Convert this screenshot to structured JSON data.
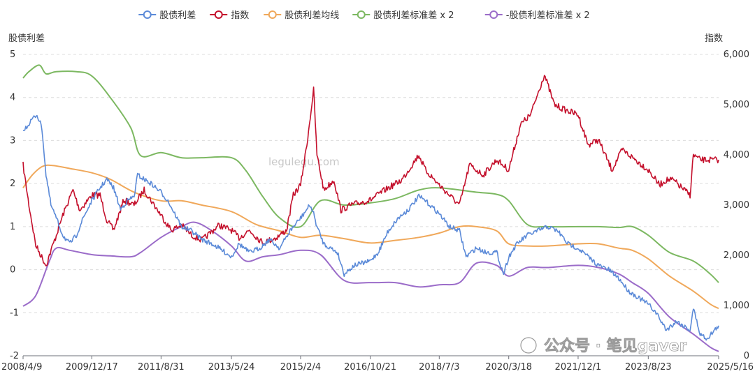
{
  "chart_data": {
    "type": "line",
    "title": "",
    "y_left_label": "股债利差",
    "y_right_label": "指数",
    "y_left_ticks": [
      "5",
      "4",
      "3",
      "2",
      "1",
      "0",
      "-1",
      "-2"
    ],
    "y_right_ticks": [
      "6,000",
      "5,000",
      "4,000",
      "3,000",
      "2,000",
      "1,000",
      "0"
    ],
    "ylim_left": [
      -2,
      5
    ],
    "ylim_right": [
      0,
      6000
    ],
    "x_ticks": [
      "2008/4/9",
      "2009/12/17",
      "2011/8/31",
      "2013/5/24",
      "2015/2/4",
      "2016/10/21",
      "2018/7/3",
      "2020/3/18",
      "2021/12/1",
      "2023/8/23",
      "2025/5/16"
    ],
    "x_range": [
      "2008/4/9",
      "2025/5/16"
    ],
    "grid": true,
    "legend_position": "top-center",
    "watermark": "legulegu.com",
    "source_watermark": "公众号 · 笔见gaver",
    "series": [
      {
        "name": "股债利差",
        "axis": "left",
        "color": "#5b8ad8",
        "points": [
          [
            "2008/4/9",
            3.2
          ],
          [
            "2008/5/20",
            3.35
          ],
          [
            "2008/7/1",
            3.5
          ],
          [
            "2008/8/12",
            3.6
          ],
          [
            "2008/9/25",
            3.3
          ],
          [
            "2008/11/1",
            2.2
          ],
          [
            "2008/12/15",
            1.5
          ],
          [
            "2009/2/1",
            1.2
          ],
          [
            "2009/4/1",
            0.8
          ],
          [
            "2009/6/1",
            0.6
          ],
          [
            "2009/8/1",
            0.8
          ],
          [
            "2009/10/1",
            1.2
          ],
          [
            "2009/12/17",
            1.6
          ],
          [
            "2010/3/1",
            1.9
          ],
          [
            "2010/5/1",
            2.1
          ],
          [
            "2010/7/1",
            1.9
          ],
          [
            "2010/9/1",
            1.4
          ],
          [
            "2010/11/1",
            1.6
          ],
          [
            "2011/1/1",
            1.7
          ],
          [
            "2011/2/1",
            2.2
          ],
          [
            "2011/4/1",
            2.1
          ],
          [
            "2011/6/1",
            2.0
          ],
          [
            "2011/8/31",
            1.8
          ],
          [
            "2011/11/1",
            1.6
          ],
          [
            "2012/1/1",
            1.3
          ],
          [
            "2012/3/1",
            1.0
          ],
          [
            "2012/6/1",
            0.9
          ],
          [
            "2012/9/1",
            0.7
          ],
          [
            "2012/12/1",
            0.6
          ],
          [
            "2013/2/1",
            0.5
          ],
          [
            "2013/5/24",
            0.3
          ],
          [
            "2013/8/1",
            0.6
          ],
          [
            "2013/11/1",
            0.4
          ],
          [
            "2014/2/1",
            0.5
          ],
          [
            "2014/5/1",
            0.7
          ],
          [
            "2014/8/1",
            0.5
          ],
          [
            "2014/11/1",
            0.9
          ],
          [
            "2015/2/4",
            1.2
          ],
          [
            "2015/4/1",
            1.4
          ],
          [
            "2015/5/1",
            1.5
          ],
          [
            "2015/6/1",
            1.3
          ],
          [
            "2015/7/1",
            1.0
          ],
          [
            "2015/9/1",
            0.6
          ],
          [
            "2015/11/1",
            0.5
          ],
          [
            "2016/1/1",
            0.4
          ],
          [
            "2016/3/1",
            -0.1
          ],
          [
            "2016/6/1",
            0.1
          ],
          [
            "2016/10/21",
            0.2
          ],
          [
            "2017/1/1",
            0.4
          ],
          [
            "2017/4/1",
            0.9
          ],
          [
            "2017/7/1",
            1.2
          ],
          [
            "2017/10/1",
            1.4
          ],
          [
            "2018/1/1",
            1.7
          ],
          [
            "2018/3/1",
            1.6
          ],
          [
            "2018/7/3",
            1.3
          ],
          [
            "2018/10/1",
            1.0
          ],
          [
            "2019/1/1",
            0.9
          ],
          [
            "2019/3/1",
            0.3
          ],
          [
            "2019/6/1",
            0.5
          ],
          [
            "2019/9/1",
            0.4
          ],
          [
            "2019/12/1",
            0.4
          ],
          [
            "2020/2/1",
            -0.1
          ],
          [
            "2020/3/18",
            0.3
          ],
          [
            "2020/6/1",
            0.6
          ],
          [
            "2020/9/1",
            0.8
          ],
          [
            "2020/12/1",
            0.9
          ],
          [
            "2021/3/1",
            1.0
          ],
          [
            "2021/6/1",
            0.9
          ],
          [
            "2021/9/1",
            0.6
          ],
          [
            "2021/12/1",
            0.5
          ],
          [
            "2022/3/1",
            0.3
          ],
          [
            "2022/6/1",
            0.1
          ],
          [
            "2022/9/1",
            0.0
          ],
          [
            "2022/12/1",
            -0.2
          ],
          [
            "2023/3/1",
            -0.5
          ],
          [
            "2023/8/23",
            -0.8
          ],
          [
            "2023/11/1",
            -1.0
          ],
          [
            "2024/2/1",
            -1.4
          ],
          [
            "2024/5/1",
            -1.2
          ],
          [
            "2024/9/1",
            -1.4
          ],
          [
            "2024/10/1",
            -0.9
          ],
          [
            "2024/12/1",
            -1.5
          ],
          [
            "2025/2/1",
            -1.6
          ],
          [
            "2025/5/16",
            -1.3
          ]
        ]
      },
      {
        "name": "指数",
        "axis": "right",
        "color": "#c4102c",
        "points": [
          [
            "2008/4/9",
            3800
          ],
          [
            "2008/6/1",
            3000
          ],
          [
            "2008/8/1",
            2200
          ],
          [
            "2008/11/1",
            1800
          ],
          [
            "2009/2/1",
            2400
          ],
          [
            "2009/4/1",
            2800
          ],
          [
            "2009/7/1",
            3300
          ],
          [
            "2009/9/1",
            2900
          ],
          [
            "2009/12/17",
            3200
          ],
          [
            "2010/3/1",
            3200
          ],
          [
            "2010/5/1",
            2700
          ],
          [
            "2010/7/1",
            2500
          ],
          [
            "2010/10/1",
            3100
          ],
          [
            "2011/1/1",
            3000
          ],
          [
            "2011/4/1",
            3300
          ],
          [
            "2011/8/31",
            2800
          ],
          [
            "2011/12/1",
            2500
          ],
          [
            "2012/3/1",
            2600
          ],
          [
            "2012/6/1",
            2400
          ],
          [
            "2012/9/1",
            2300
          ],
          [
            "2013/2/1",
            2600
          ],
          [
            "2013/5/24",
            2500
          ],
          [
            "2013/8/1",
            2350
          ],
          [
            "2013/11/1",
            2500
          ],
          [
            "2014/3/1",
            2250
          ],
          [
            "2014/7/1",
            2350
          ],
          [
            "2014/10/1",
            2500
          ],
          [
            "2014/12/1",
            3200
          ],
          [
            "2015/2/4",
            3400
          ],
          [
            "2015/4/1",
            4200
          ],
          [
            "2015/6/1",
            5300
          ],
          [
            "2015/7/1",
            4000
          ],
          [
            "2015/9/1",
            3300
          ],
          [
            "2015/12/1",
            3500
          ],
          [
            "2016/2/1",
            2900
          ],
          [
            "2016/5/1",
            3000
          ],
          [
            "2016/10/21",
            3100
          ],
          [
            "2017/3/1",
            3300
          ],
          [
            "2017/8/1",
            3500
          ],
          [
            "2018/1/1",
            4000
          ],
          [
            "2018/3/1",
            3700
          ],
          [
            "2018/7/3",
            3400
          ],
          [
            "2018/10/1",
            3200
          ],
          [
            "2019/1/1",
            3000
          ],
          [
            "2019/4/1",
            3800
          ],
          [
            "2019/8/1",
            3600
          ],
          [
            "2019/12/1",
            3900
          ],
          [
            "2020/3/18",
            3700
          ],
          [
            "2020/7/1",
            4600
          ],
          [
            "2020/10/1",
            4800
          ],
          [
            "2021/2/1",
            5600
          ],
          [
            "2021/5/1",
            5000
          ],
          [
            "2021/8/1",
            4900
          ],
          [
            "2021/12/1",
            4800
          ],
          [
            "2022/3/1",
            4200
          ],
          [
            "2022/6/1",
            4300
          ],
          [
            "2022/10/1",
            3700
          ],
          [
            "2023/1/1",
            4100
          ],
          [
            "2023/5/1",
            3900
          ],
          [
            "2023/8/23",
            3700
          ],
          [
            "2023/12/1",
            3400
          ],
          [
            "2024/2/1",
            3500
          ],
          [
            "2024/4/1",
            3500
          ],
          [
            "2024/9/1",
            3200
          ],
          [
            "2024/10/1",
            4000
          ],
          [
            "2024/12/1",
            3900
          ],
          [
            "2025/3/1",
            3900
          ],
          [
            "2025/5/16",
            3900
          ]
        ]
      },
      {
        "name": "股债利差均线",
        "axis": "left",
        "color": "#f0a85a",
        "points": [
          [
            "2008/4/9",
            1.9
          ],
          [
            "2008/7/1",
            2.2
          ],
          [
            "2008/10/1",
            2.4
          ],
          [
            "2009/1/1",
            2.42
          ],
          [
            "2009/6/1",
            2.35
          ],
          [
            "2009/12/17",
            2.25
          ],
          [
            "2010/6/1",
            2.1
          ],
          [
            "2011/1/1",
            1.8
          ],
          [
            "2011/8/31",
            1.6
          ],
          [
            "2012/3/1",
            1.6
          ],
          [
            "2012/9/1",
            1.5
          ],
          [
            "2013/5/24",
            1.35
          ],
          [
            "2014/1/1",
            1.05
          ],
          [
            "2014/8/1",
            0.9
          ],
          [
            "2015/2/4",
            0.75
          ],
          [
            "2015/8/1",
            0.8
          ],
          [
            "2016/3/1",
            0.72
          ],
          [
            "2016/10/21",
            0.62
          ],
          [
            "2017/6/1",
            0.68
          ],
          [
            "2018/1/1",
            0.75
          ],
          [
            "2018/7/3",
            0.85
          ],
          [
            "2019/1/1",
            1.0
          ],
          [
            "2019/6/1",
            1.0
          ],
          [
            "2019/12/1",
            0.9
          ],
          [
            "2020/3/18",
            0.6
          ],
          [
            "2020/9/1",
            0.55
          ],
          [
            "2021/3/1",
            0.55
          ],
          [
            "2021/12/1",
            0.6
          ],
          [
            "2022/6/1",
            0.6
          ],
          [
            "2022/12/1",
            0.5
          ],
          [
            "2023/4/1",
            0.45
          ],
          [
            "2023/8/23",
            0.25
          ],
          [
            "2024/3/1",
            -0.15
          ],
          [
            "2024/10/1",
            -0.5
          ],
          [
            "2025/3/1",
            -0.8
          ],
          [
            "2025/5/16",
            -0.9
          ]
        ]
      },
      {
        "name": "股债利差标准差 x 2",
        "axis": "left",
        "color": "#7cb861",
        "points": [
          [
            "2008/4/9",
            4.45
          ],
          [
            "2008/6/1",
            4.6
          ],
          [
            "2008/9/1",
            4.75
          ],
          [
            "2008/11/1",
            4.55
          ],
          [
            "2009/2/1",
            4.6
          ],
          [
            "2009/8/1",
            4.6
          ],
          [
            "2009/12/17",
            4.5
          ],
          [
            "2010/6/1",
            4.0
          ],
          [
            "2010/12/1",
            3.3
          ],
          [
            "2011/3/1",
            2.65
          ],
          [
            "2011/8/31",
            2.72
          ],
          [
            "2012/3/1",
            2.6
          ],
          [
            "2012/9/1",
            2.6
          ],
          [
            "2013/5/24",
            2.6
          ],
          [
            "2013/10/1",
            2.3
          ],
          [
            "2014/3/1",
            1.7
          ],
          [
            "2014/8/1",
            1.2
          ],
          [
            "2015/2/4",
            1.0
          ],
          [
            "2015/8/1",
            1.6
          ],
          [
            "2016/3/1",
            1.5
          ],
          [
            "2016/10/21",
            1.55
          ],
          [
            "2017/6/1",
            1.65
          ],
          [
            "2018/1/1",
            1.85
          ],
          [
            "2018/7/3",
            1.9
          ],
          [
            "2019/6/1",
            1.8
          ],
          [
            "2019/12/1",
            1.75
          ],
          [
            "2020/3/18",
            1.6
          ],
          [
            "2020/9/1",
            1.05
          ],
          [
            "2021/3/1",
            1.0
          ],
          [
            "2021/12/1",
            1.0
          ],
          [
            "2022/6/1",
            1.0
          ],
          [
            "2022/12/1",
            0.98
          ],
          [
            "2023/4/1",
            1.0
          ],
          [
            "2023/8/23",
            0.8
          ],
          [
            "2024/3/1",
            0.4
          ],
          [
            "2024/10/1",
            0.2
          ],
          [
            "2025/3/1",
            -0.1
          ],
          [
            "2025/5/16",
            -0.3
          ]
        ]
      },
      {
        "name": "-股债利差标准差 x 2",
        "axis": "left",
        "color": "#9b6cc9",
        "points": [
          [
            "2008/4/9",
            -0.85
          ],
          [
            "2008/8/1",
            -0.6
          ],
          [
            "2008/12/1",
            0.2
          ],
          [
            "2009/2/1",
            0.5
          ],
          [
            "2009/6/1",
            0.45
          ],
          [
            "2009/12/17",
            0.35
          ],
          [
            "2010/6/1",
            0.32
          ],
          [
            "2010/12/1",
            0.3
          ],
          [
            "2011/3/1",
            0.4
          ],
          [
            "2011/8/31",
            0.75
          ],
          [
            "2012/3/1",
            1.0
          ],
          [
            "2012/7/1",
            1.1
          ],
          [
            "2012/12/1",
            0.9
          ],
          [
            "2013/5/24",
            0.55
          ],
          [
            "2013/10/1",
            0.2
          ],
          [
            "2014/3/1",
            0.3
          ],
          [
            "2014/8/1",
            0.35
          ],
          [
            "2015/2/4",
            0.45
          ],
          [
            "2015/8/1",
            0.35
          ],
          [
            "2016/3/1",
            -0.25
          ],
          [
            "2016/10/21",
            -0.3
          ],
          [
            "2017/6/1",
            -0.3
          ],
          [
            "2018/1/1",
            -0.4
          ],
          [
            "2018/7/3",
            -0.35
          ],
          [
            "2019/1/1",
            -0.3
          ],
          [
            "2019/6/1",
            0.15
          ],
          [
            "2019/12/1",
            0.1
          ],
          [
            "2020/3/18",
            -0.15
          ],
          [
            "2020/9/1",
            0.05
          ],
          [
            "2021/3/1",
            0.05
          ],
          [
            "2021/12/1",
            0.1
          ],
          [
            "2022/6/1",
            0.05
          ],
          [
            "2022/12/1",
            -0.1
          ],
          [
            "2023/4/1",
            -0.3
          ],
          [
            "2023/8/23",
            -0.55
          ],
          [
            "2024/3/1",
            -1.1
          ],
          [
            "2024/10/1",
            -1.5
          ],
          [
            "2025/3/1",
            -1.8
          ],
          [
            "2025/5/16",
            -1.9
          ]
        ]
      }
    ]
  }
}
